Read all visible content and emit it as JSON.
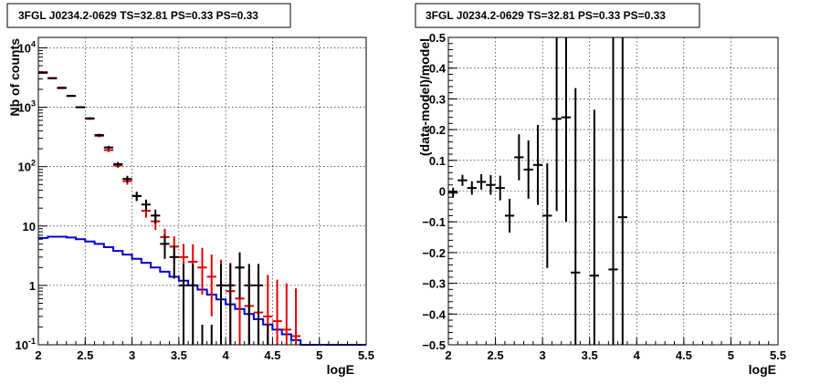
{
  "chart_data": [
    {
      "type": "histogram-errorbars",
      "title": "3FGL J0234.2-0629 TS=32.81 PS=0.33 PS=0.33",
      "xlabel": "logE",
      "ylabel": "Nb of counts",
      "xlim": [
        2,
        5.5
      ],
      "ylim": [
        0.1,
        15000
      ],
      "yscale": "log",
      "grid": true,
      "x_ticks": [
        "2",
        "2.5",
        "3",
        "3.5",
        "4",
        "4.5",
        "5",
        "5.5"
      ],
      "y_ticks": [
        "10^-1",
        "1",
        "10",
        "10^2",
        "10^3",
        "10^4"
      ],
      "bin_width": 0.1,
      "series": [
        {
          "color": "#000000",
          "style": "points-errorbars",
          "x": [
            2.05,
            2.15,
            2.25,
            2.35,
            2.45,
            2.55,
            2.65,
            2.75,
            2.85,
            2.95,
            3.05,
            3.15,
            3.25,
            3.35,
            3.45,
            3.55,
            3.65,
            3.75,
            3.85,
            3.95,
            4.05,
            4.15,
            4.25,
            4.35,
            4.45
          ],
          "y": [
            3800,
            3100,
            2100,
            1550,
            1000,
            650,
            340,
            210,
            110,
            62,
            32,
            23,
            15,
            5,
            3,
            1,
            1,
            0.1,
            0.1,
            1,
            1,
            2,
            1,
            1,
            0.1
          ],
          "yerr_low": [
            62,
            56,
            46,
            39,
            32,
            25,
            18,
            14,
            10,
            8,
            5.6,
            4.8,
            3.9,
            2.2,
            1.7,
            0.9,
            0.9,
            0,
            0,
            0.9,
            0.9,
            1.4,
            0.9,
            0.9,
            0
          ],
          "yerr_high": [
            62,
            56,
            46,
            39,
            32,
            25,
            18,
            14,
            10,
            8,
            5.6,
            4.8,
            3.9,
            2.2,
            1.7,
            1.3,
            1.3,
            0,
            0,
            1.3,
            1.3,
            1.6,
            1.3,
            1.3,
            0
          ]
        },
        {
          "color": "#e00000",
          "style": "points-errorbars",
          "x": [
            2.05,
            2.15,
            2.25,
            2.35,
            2.45,
            2.55,
            2.65,
            2.75,
            2.85,
            2.95,
            3.05,
            3.15,
            3.25,
            3.35,
            3.45,
            3.55,
            3.65,
            3.75,
            3.85,
            3.95,
            4.05,
            4.15,
            4.25,
            4.35,
            4.45,
            4.55,
            4.65,
            4.75
          ],
          "y": [
            3900,
            3050,
            2150,
            1550,
            1000,
            640,
            330,
            190,
            105,
            57,
            32,
            18,
            12,
            6.5,
            4.5,
            3,
            2.5,
            2.0,
            1.4,
            1.0,
            0.8,
            0.6,
            0.45,
            0.35,
            0.3,
            0.25,
            0.18,
            0.14
          ],
          "yerr_low": [
            62,
            55,
            46,
            39,
            32,
            25,
            18,
            14,
            10,
            7.5,
            5.6,
            4.2,
            3.4,
            2.5,
            2.1,
            1.7,
            1.5,
            1.3,
            1.1,
            0.9,
            0.7,
            0.5,
            0.4,
            0.3,
            0.25,
            0.2,
            0.15,
            0.1
          ],
          "yerr_high": [
            62,
            55,
            46,
            39,
            32,
            25,
            18,
            14,
            10,
            7.5,
            5.6,
            4.2,
            3.4,
            2.5,
            2.2,
            2.0,
            2.4,
            2.3,
            1.9,
            1.7,
            1.6,
            1.5,
            1.4,
            1.3,
            1.2,
            1.0,
            0.9,
            0.75
          ]
        },
        {
          "color": "#0000cc",
          "style": "step",
          "x": [
            2.05,
            2.15,
            2.25,
            2.35,
            2.45,
            2.55,
            2.65,
            2.75,
            2.85,
            2.95,
            3.05,
            3.15,
            3.25,
            3.35,
            3.45,
            3.55,
            3.65,
            3.75,
            3.85,
            3.95,
            4.05,
            4.15,
            4.25,
            4.35,
            4.45,
            4.55,
            4.65,
            4.75,
            4.85,
            4.95,
            5.05,
            5.15,
            5.25,
            5.35,
            5.45
          ],
          "y": [
            6.3,
            6.6,
            6.6,
            6.4,
            6.0,
            5.5,
            5.0,
            4.4,
            3.8,
            3.3,
            2.8,
            2.4,
            2.0,
            1.7,
            1.4,
            1.2,
            1.0,
            0.85,
            0.7,
            0.58,
            0.48,
            0.4,
            0.33,
            0.27,
            0.22,
            0.18,
            0.15,
            0.12,
            0.1,
            0.1,
            0.1,
            0.1,
            0.1,
            0.1,
            0.1
          ]
        }
      ]
    },
    {
      "type": "scatter-errorbars",
      "title": "3FGL J0234.2-0629 TS=32.81 PS=0.33 PS=0.33",
      "xlabel": "logE",
      "ylabel": "(data-model)/model",
      "xlim": [
        2,
        5.5
      ],
      "ylim": [
        -0.5,
        0.5
      ],
      "grid": true,
      "x_ticks": [
        "2",
        "2.5",
        "3",
        "3.5",
        "4",
        "4.5",
        "5",
        "5.5"
      ],
      "y_ticks": [
        "-0.5",
        "-0.4",
        "-0.3",
        "-0.2",
        "-0.1",
        "0",
        "0.1",
        "0.2",
        "0.3",
        "0.4",
        "0.5"
      ],
      "bin_width": 0.1,
      "series": [
        {
          "color": "#000000",
          "x": [
            2.05,
            2.15,
            2.25,
            2.35,
            2.45,
            2.55,
            2.65,
            2.75,
            2.85,
            2.95,
            3.05,
            3.15,
            3.25,
            3.35,
            3.55,
            3.75,
            3.85
          ],
          "y": [
            -0.005,
            0.035,
            0.01,
            0.03,
            0.02,
            0.01,
            -0.08,
            0.11,
            0.07,
            0.085,
            -0.08,
            0.235,
            0.24,
            -0.265,
            -0.275,
            -0.255,
            -0.085
          ],
          "yerr": [
            0.016,
            0.018,
            0.022,
            0.025,
            0.032,
            0.04,
            0.055,
            0.075,
            0.095,
            0.13,
            0.17,
            0.3,
            0.34,
            0.6,
            0.54,
            0.8,
            0.8
          ]
        }
      ]
    }
  ]
}
